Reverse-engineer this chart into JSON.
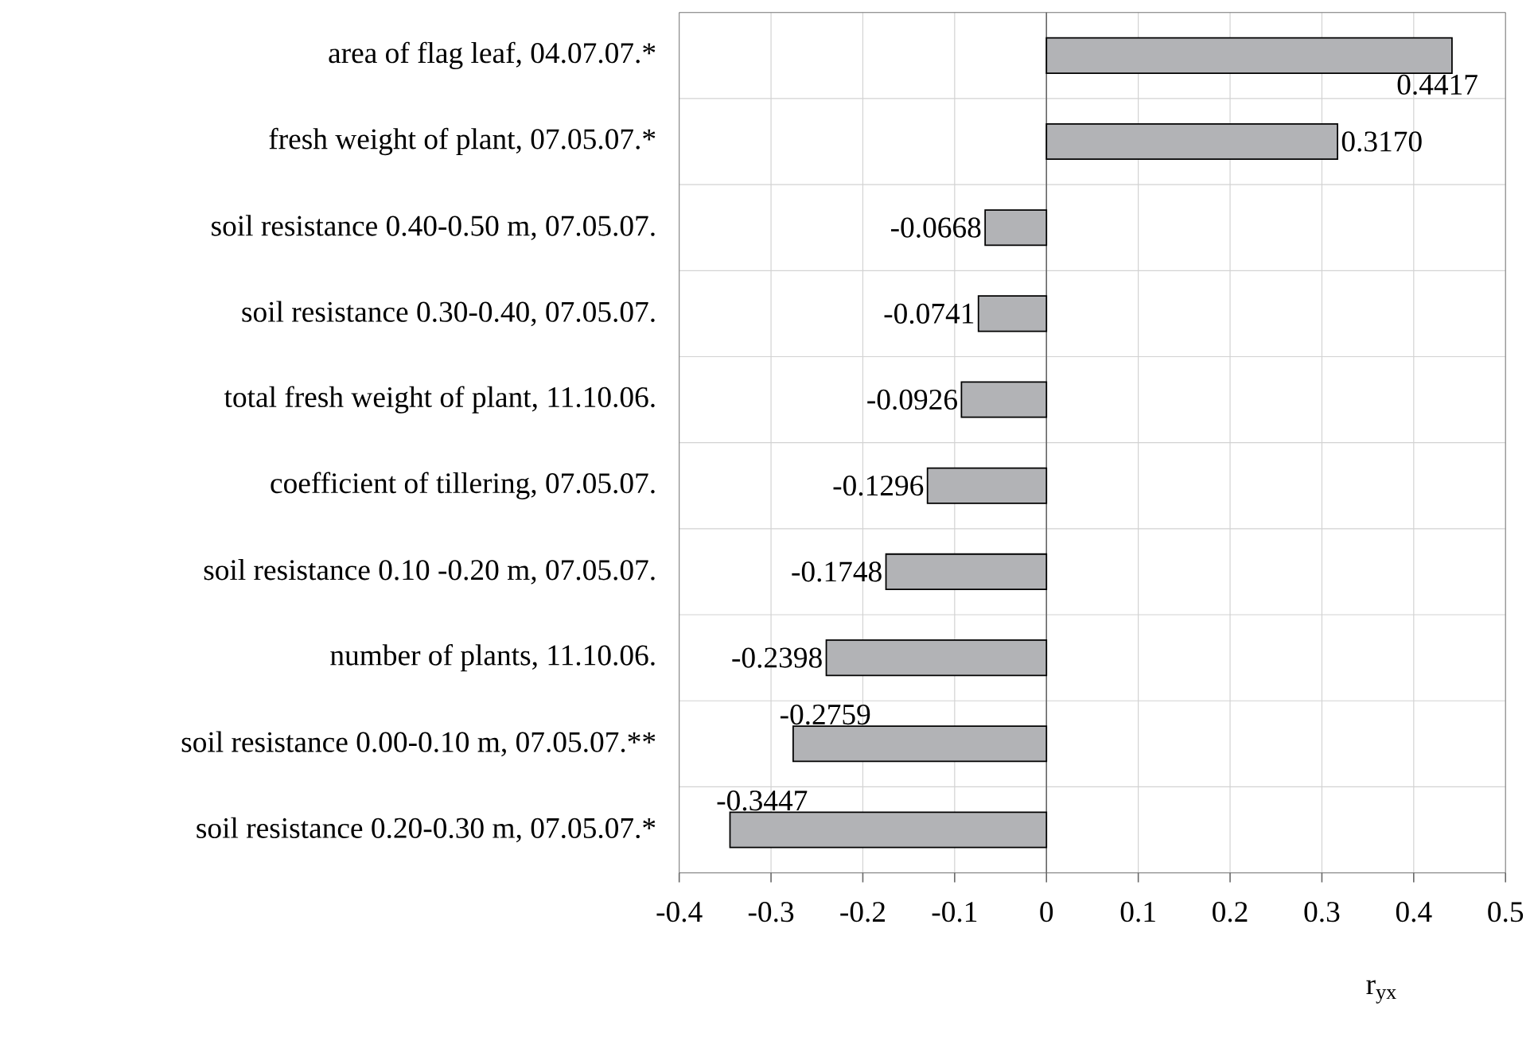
{
  "chart_data": {
    "type": "bar",
    "orientation": "horizontal",
    "xlabel": "r$_{yx}$",
    "categories": [
      "area of flag leaf, 04.07.07.*",
      "fresh weight of plant, 07.05.07.*",
      "soil resistance 0.40-0.50 m, 07.05.07.",
      "soil resistance 0.30-0.40, 07.05.07.",
      "total fresh weight of plant, 11.10.06.",
      "coefficient of tillering, 07.05.07.",
      "soil resistance 0.10 -0.20 m, 07.05.07.",
      "number of plants, 11.10.06.",
      "soil resistance 0.00-0.10 m, 07.05.07.**",
      "soil resistance 0.20-0.30 m, 07.05.07.*"
    ],
    "values": [
      0.4417,
      0.317,
      -0.0668,
      -0.0741,
      -0.0926,
      -0.1296,
      -0.1748,
      -0.2398,
      -0.2759,
      -0.3447
    ],
    "value_labels": [
      "0.4417",
      "0.3170",
      "-0.0668",
      "-0.0741",
      "-0.0926",
      "-0.1296",
      "-0.1748",
      "-0.2398",
      "-0.2759",
      "-0.3447"
    ],
    "color": "#b2b3b6",
    "xlim": [
      -0.4,
      0.5
    ],
    "xticks": [
      -0.4,
      -0.3,
      -0.2,
      -0.1,
      0,
      0.1,
      0.2,
      0.3,
      0.4,
      0.5
    ],
    "grid": true
  }
}
